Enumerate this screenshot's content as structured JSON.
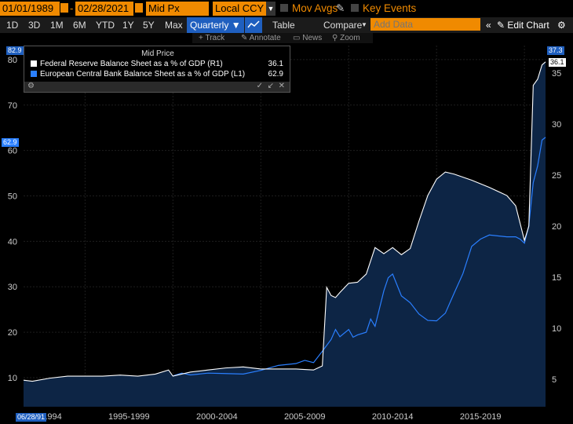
{
  "toolbar": {
    "start_date": "01/01/1989",
    "end_date": "02/28/2021",
    "field": "Mid Px",
    "currency": "Local CCY",
    "mov_avgs": "Mov Avgs",
    "key_events": "Key Events"
  },
  "periods": [
    "1D",
    "3D",
    "1M",
    "6M",
    "YTD",
    "1Y",
    "5Y",
    "Max"
  ],
  "frequency": "Quarterly",
  "table_label": "Table",
  "compare_label": "Compare",
  "add_data_placeholder": "Add Data",
  "edit_chart_label": "Edit Chart",
  "tools": [
    "Track",
    "Annotate",
    "News",
    "Zoom"
  ],
  "tags": {
    "left_top": "82.9",
    "left_last": "62.9",
    "right_top": "37.3",
    "right_last": "36.1",
    "start_date": "06/28/91"
  },
  "colors": {
    "accent_orange": "#f08a00",
    "fed_line": "#ffffff",
    "ecb_line": "#2a7fff",
    "fill": "#0d2545",
    "background": "#000000"
  },
  "chart_data": {
    "type": "line",
    "title": "Mid Price",
    "x_tick_labels": [
      "1990-1994",
      "1995-1999",
      "2000-2004",
      "2005-2009",
      "2010-2014",
      "2015-2019"
    ],
    "left_axis": {
      "ticks": [
        10,
        20,
        30,
        40,
        50,
        60,
        70,
        80
      ],
      "range": [
        3.6,
        83.1
      ]
    },
    "right_axis": {
      "ticks": [
        5,
        10,
        15,
        20,
        25,
        30,
        35
      ],
      "range": [
        2.3,
        37.7
      ]
    },
    "x_range": [
      1991.5,
      2021.2
    ],
    "series": [
      {
        "name": "Federal Reserve Balance Sheet as a % of GDP",
        "axis": "R1",
        "last": "36.1",
        "color": "#ffffff",
        "points": [
          [
            1991.5,
            4.9
          ],
          [
            1992.0,
            4.8
          ],
          [
            1993.0,
            5.1
          ],
          [
            1994.0,
            5.3
          ],
          [
            1995.0,
            5.3
          ],
          [
            1996.0,
            5.3
          ],
          [
            1997.0,
            5.4
          ],
          [
            1998.0,
            5.3
          ],
          [
            1999.0,
            5.5
          ],
          [
            1999.75,
            5.9
          ],
          [
            2000.0,
            5.3
          ],
          [
            2001.0,
            5.7
          ],
          [
            2002.0,
            5.9
          ],
          [
            2003.0,
            6.1
          ],
          [
            2004.0,
            6.2
          ],
          [
            2005.0,
            6.0
          ],
          [
            2006.0,
            6.0
          ],
          [
            2007.0,
            6.0
          ],
          [
            2008.0,
            5.9
          ],
          [
            2008.5,
            6.3
          ],
          [
            2008.75,
            14.0
          ],
          [
            2009.0,
            13.2
          ],
          [
            2009.25,
            13.0
          ],
          [
            2009.5,
            13.5
          ],
          [
            2010.0,
            14.4
          ],
          [
            2010.5,
            14.5
          ],
          [
            2011.0,
            15.3
          ],
          [
            2011.5,
            17.9
          ],
          [
            2012.0,
            17.3
          ],
          [
            2012.5,
            17.9
          ],
          [
            2013.0,
            17.2
          ],
          [
            2013.5,
            17.8
          ],
          [
            2014.0,
            20.5
          ],
          [
            2014.5,
            23.0
          ],
          [
            2015.0,
            24.6
          ],
          [
            2015.5,
            25.3
          ],
          [
            2016.0,
            25.1
          ],
          [
            2017.0,
            24.5
          ],
          [
            2018.0,
            23.8
          ],
          [
            2019.0,
            23.0
          ],
          [
            2019.5,
            22.0
          ],
          [
            2020.0,
            18.6
          ],
          [
            2020.25,
            20.0
          ],
          [
            2020.5,
            33.8
          ],
          [
            2020.75,
            34.4
          ],
          [
            2021.0,
            35.8
          ],
          [
            2021.2,
            36.1
          ]
        ]
      },
      {
        "name": "European Central Bank Balance Sheet as a % of GDP",
        "axis": "L1",
        "last": "62.9",
        "color": "#2a7fff",
        "points": [
          [
            2000.0,
            10.4
          ],
          [
            2000.5,
            11.0
          ],
          [
            2001.0,
            10.6
          ],
          [
            2002.0,
            11.0
          ],
          [
            2003.0,
            10.9
          ],
          [
            2004.0,
            10.8
          ],
          [
            2005.0,
            11.6
          ],
          [
            2006.0,
            12.7
          ],
          [
            2007.0,
            13.1
          ],
          [
            2007.5,
            13.8
          ],
          [
            2008.0,
            13.3
          ],
          [
            2008.5,
            15.8
          ],
          [
            2009.0,
            18.4
          ],
          [
            2009.25,
            20.6
          ],
          [
            2009.5,
            19.0
          ],
          [
            2010.0,
            20.6
          ],
          [
            2010.25,
            18.9
          ],
          [
            2010.5,
            19.4
          ],
          [
            2011.0,
            20.0
          ],
          [
            2011.25,
            22.9
          ],
          [
            2011.5,
            21.3
          ],
          [
            2012.0,
            29.1
          ],
          [
            2012.25,
            32.0
          ],
          [
            2012.5,
            32.8
          ],
          [
            2013.0,
            28.0
          ],
          [
            2013.5,
            26.5
          ],
          [
            2014.0,
            24.0
          ],
          [
            2014.5,
            22.6
          ],
          [
            2015.0,
            22.5
          ],
          [
            2015.5,
            24.2
          ],
          [
            2016.0,
            28.6
          ],
          [
            2016.5,
            32.9
          ],
          [
            2017.0,
            38.9
          ],
          [
            2017.5,
            40.5
          ],
          [
            2018.0,
            41.4
          ],
          [
            2019.0,
            41.0
          ],
          [
            2019.5,
            41.0
          ],
          [
            2019.75,
            40.5
          ],
          [
            2020.0,
            39.6
          ],
          [
            2020.25,
            43.5
          ],
          [
            2020.5,
            52.9
          ],
          [
            2020.75,
            56.6
          ],
          [
            2021.0,
            62.3
          ],
          [
            2021.2,
            62.9
          ]
        ]
      }
    ]
  }
}
